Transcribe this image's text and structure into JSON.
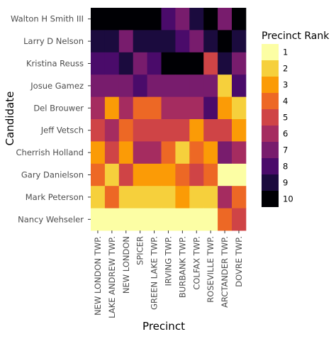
{
  "chart_data": {
    "type": "heatmap",
    "xlabel": "Precinct",
    "ylabel": "Candidate",
    "x_categories": [
      "NEW LONDON TWP.",
      "LAKE ANDREW TWP.",
      "NEW LONDON",
      "SPICER",
      "GREEN LAKE TWP.",
      "IRVING TWP.",
      "BURBANK TWP.",
      "COLFAX TWP.",
      "ROSEVILLE TWP.",
      "ARCTANDER TWP.",
      "DOVRE TWP."
    ],
    "y_categories": [
      "Walton H Smith III",
      "Larry D Nelson",
      "Kristina Reuss",
      "Josue Gamez",
      "Del Brouwer",
      "Jeff Vetsch",
      "Cherrish Holland",
      "Gary Danielson",
      "Mark Peterson",
      "Nancy Wehseler"
    ],
    "values": [
      [
        10,
        10,
        10,
        10,
        10,
        8,
        7,
        9,
        10,
        7,
        10
      ],
      [
        9,
        9,
        7,
        9,
        9,
        9,
        8,
        7,
        9,
        10,
        9
      ],
      [
        8,
        8,
        9,
        7,
        8,
        10,
        10,
        10,
        5,
        9,
        7
      ],
      [
        7,
        7,
        7,
        8,
        7,
        7,
        7,
        7,
        7,
        2,
        8
      ],
      [
        6,
        3,
        6,
        4,
        4,
        6,
        6,
        6,
        8,
        3,
        2
      ],
      [
        5,
        6,
        4,
        5,
        5,
        5,
        5,
        3,
        5,
        5,
        3
      ],
      [
        3,
        5,
        3,
        6,
        6,
        4,
        2,
        4,
        3,
        7,
        6
      ],
      [
        4,
        2,
        5,
        3,
        3,
        3,
        4,
        5,
        4,
        1,
        1
      ],
      [
        2,
        4,
        2,
        2,
        2,
        2,
        3,
        2,
        2,
        6,
        4
      ],
      [
        1,
        1,
        1,
        1,
        1,
        1,
        1,
        1,
        1,
        4,
        5
      ]
    ],
    "legend": {
      "title": "Precinct Rank",
      "position": "right",
      "levels": [
        "1",
        "2",
        "3",
        "4",
        "5",
        "6",
        "7",
        "8",
        "9",
        "10"
      ],
      "colors": [
        "#fcfea4",
        "#f6d03c",
        "#fb9b06",
        "#ed6825",
        "#cf4446",
        "#a52c60",
        "#781c6d",
        "#4a0b6a",
        "#1b0b3e",
        "#000004"
      ]
    },
    "grid": false
  }
}
